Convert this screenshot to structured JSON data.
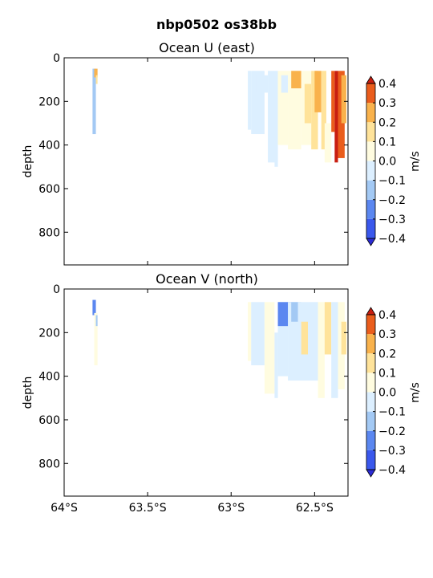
{
  "figure": {
    "suptitle": "nbp0502 os38bb"
  },
  "colors": {
    "levels": [
      -0.4,
      -0.3,
      -0.2,
      -0.1,
      0.0,
      0.1,
      0.2,
      0.3,
      0.4
    ],
    "fills": [
      "#3355ee",
      "#4f7ff0",
      "#8db9f2",
      "#c9e3f7",
      "#e8f5fb",
      "#fffbd6",
      "#fff0b0",
      "#fcc95e",
      "#f8a23e",
      "#ec6a1f",
      "#d7301f",
      "#2a2fd8"
    ],
    "band_fills": [
      "#3a58ec",
      "#5b87f0",
      "#a3c9f4",
      "#dcefff",
      "#fffce0",
      "#ffe39a",
      "#f9b24c",
      "#ea5d1c"
    ],
    "under": "#2b2bd4",
    "over": "#c81e10"
  },
  "chart_data": [
    {
      "type": "heatmap",
      "title": "Ocean U (east)",
      "xlabel": "",
      "ylabel": "depth",
      "xlim": [
        -64.0,
        -62.3
      ],
      "ylim": [
        950,
        0
      ],
      "yticks": [
        0,
        200,
        400,
        600,
        800
      ],
      "xticks": [
        -64.0,
        -63.5,
        -63.0,
        -62.5
      ],
      "xtick_labels_visible": false,
      "colorbar": {
        "label": "m/s",
        "ticks": [
          -0.4,
          -0.3,
          -0.2,
          -0.1,
          0.0,
          0.1,
          0.2,
          0.3,
          0.4
        ],
        "tick_labels": [
          "−0.4",
          "−0.3",
          "−0.2",
          "−0.1",
          "0.0",
          "0.1",
          "0.2",
          "0.3",
          "0.4"
        ]
      },
      "cells": [
        {
          "lon": [
            -63.83,
            -63.81
          ],
          "depth": [
            50,
            350
          ],
          "value": -0.12
        },
        {
          "lon": [
            -63.82,
            -63.8
          ],
          "depth": [
            50,
            90
          ],
          "value": 0.25
        },
        {
          "lon": [
            -63.81,
            -63.8
          ],
          "depth": [
            80,
            120
          ],
          "value": 0.12
        },
        {
          "lon": [
            -62.9,
            -62.88
          ],
          "depth": [
            60,
            330
          ],
          "value": -0.05
        },
        {
          "lon": [
            -62.88,
            -62.8
          ],
          "depth": [
            60,
            350
          ],
          "value": -0.03
        },
        {
          "lon": [
            -62.85,
            -62.78
          ],
          "depth": [
            80,
            160
          ],
          "value": -0.08
        },
        {
          "lon": [
            -62.78,
            -62.72
          ],
          "depth": [
            60,
            480
          ],
          "value": -0.04
        },
        {
          "lon": [
            -62.74,
            -62.72
          ],
          "depth": [
            220,
            500
          ],
          "value": -0.06
        },
        {
          "lon": [
            -62.72,
            -62.66
          ],
          "depth": [
            60,
            400
          ],
          "value": 0.05
        },
        {
          "lon": [
            -62.7,
            -62.64
          ],
          "depth": [
            80,
            160
          ],
          "value": -0.07
        },
        {
          "lon": [
            -62.66,
            -62.58
          ],
          "depth": [
            60,
            420
          ],
          "value": 0.06
        },
        {
          "lon": [
            -62.64,
            -62.58
          ],
          "depth": [
            60,
            140
          ],
          "value": 0.22
        },
        {
          "lon": [
            -62.58,
            -62.52
          ],
          "depth": [
            60,
            400
          ],
          "value": 0.08
        },
        {
          "lon": [
            -62.56,
            -62.52
          ],
          "depth": [
            120,
            300
          ],
          "value": 0.18
        },
        {
          "lon": [
            -62.52,
            -62.48
          ],
          "depth": [
            60,
            420
          ],
          "value": 0.12
        },
        {
          "lon": [
            -62.5,
            -62.46
          ],
          "depth": [
            60,
            250
          ],
          "value": 0.27
        },
        {
          "lon": [
            -62.46,
            -62.43
          ],
          "depth": [
            60,
            420
          ],
          "value": 0.16
        },
        {
          "lon": [
            -62.44,
            -62.4
          ],
          "depth": [
            300,
            480
          ],
          "value": 0.08
        },
        {
          "lon": [
            -62.4,
            -62.38
          ],
          "depth": [
            60,
            340
          ],
          "value": 0.38
        },
        {
          "lon": [
            -62.38,
            -62.36
          ],
          "depth": [
            60,
            480
          ],
          "value": 0.4
        },
        {
          "lon": [
            -62.36,
            -62.32
          ],
          "depth": [
            60,
            460
          ],
          "value": 0.3
        },
        {
          "lon": [
            -62.34,
            -62.31
          ],
          "depth": [
            80,
            300
          ],
          "value": 0.22
        }
      ]
    },
    {
      "type": "heatmap",
      "title": "Ocean V (north)",
      "xlabel": "",
      "ylabel": "depth",
      "xlim": [
        -64.0,
        -62.3
      ],
      "ylim": [
        950,
        0
      ],
      "yticks": [
        0,
        200,
        400,
        600,
        800
      ],
      "xticks": [
        -64.0,
        -63.5,
        -63.0,
        -62.5
      ],
      "xtick_labels": [
        "64°S",
        "63.5°S",
        "63°S",
        "62.5°S"
      ],
      "colorbar": {
        "label": "m/s",
        "ticks": [
          -0.4,
          -0.3,
          -0.2,
          -0.1,
          0.0,
          0.1,
          0.2,
          0.3,
          0.4
        ],
        "tick_labels": [
          "−0.4",
          "−0.3",
          "−0.2",
          "−0.1",
          "0.0",
          "0.1",
          "0.2",
          "0.3",
          "0.4"
        ]
      },
      "cells": [
        {
          "lon": [
            -63.83,
            -63.81
          ],
          "depth": [
            50,
            120
          ],
          "value": -0.25
        },
        {
          "lon": [
            -63.82,
            -63.8
          ],
          "depth": [
            110,
            350
          ],
          "value": 0.03
        },
        {
          "lon": [
            -63.81,
            -63.8
          ],
          "depth": [
            120,
            170
          ],
          "value": -0.12
        },
        {
          "lon": [
            -62.9,
            -62.88
          ],
          "depth": [
            60,
            330
          ],
          "value": 0.03
        },
        {
          "lon": [
            -62.88,
            -62.8
          ],
          "depth": [
            60,
            350
          ],
          "value": -0.04
        },
        {
          "lon": [
            -62.8,
            -62.74
          ],
          "depth": [
            60,
            480
          ],
          "value": 0.02
        },
        {
          "lon": [
            -62.74,
            -62.72
          ],
          "depth": [
            200,
            500
          ],
          "value": -0.03
        },
        {
          "lon": [
            -62.72,
            -62.66
          ],
          "depth": [
            60,
            400
          ],
          "value": -0.08
        },
        {
          "lon": [
            -62.72,
            -62.64
          ],
          "depth": [
            60,
            170
          ],
          "value": -0.26
        },
        {
          "lon": [
            -62.66,
            -62.6
          ],
          "depth": [
            60,
            420
          ],
          "value": -0.06
        },
        {
          "lon": [
            -62.64,
            -62.58
          ],
          "depth": [
            60,
            150
          ],
          "value": -0.14
        },
        {
          "lon": [
            -62.6,
            -62.54
          ],
          "depth": [
            60,
            420
          ],
          "value": -0.03
        },
        {
          "lon": [
            -62.58,
            -62.54
          ],
          "depth": [
            150,
            300
          ],
          "value": 0.12
        },
        {
          "lon": [
            -62.54,
            -62.48
          ],
          "depth": [
            60,
            420
          ],
          "value": -0.05
        },
        {
          "lon": [
            -62.48,
            -62.44
          ],
          "depth": [
            60,
            500
          ],
          "value": 0.04
        },
        {
          "lon": [
            -62.44,
            -62.4
          ],
          "depth": [
            60,
            300
          ],
          "value": 0.15
        },
        {
          "lon": [
            -62.4,
            -62.36
          ],
          "depth": [
            60,
            500
          ],
          "value": -0.05
        },
        {
          "lon": [
            -62.36,
            -62.32
          ],
          "depth": [
            60,
            460
          ],
          "value": 0.06
        },
        {
          "lon": [
            -62.34,
            -62.31
          ],
          "depth": [
            150,
            300
          ],
          "value": 0.14
        }
      ]
    }
  ]
}
